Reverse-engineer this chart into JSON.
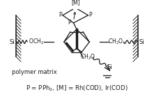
{
  "bg_color": "#ffffff",
  "line_color": "#1a1a1a",
  "fig_width": 2.21,
  "fig_height": 1.42,
  "dpi": 100,
  "label_polymer": "polymer matrix",
  "label_equation": "P = PPh$_2$, [M] = Rh(COD), Ir(COD)",
  "label_Si_left": "Si",
  "label_Si_right": "Si",
  "label_Si_bottom": "Si",
  "label_M": "[M]",
  "label_P_left": "P",
  "label_P_right": "P",
  "label_P_center": "P",
  "label_OCH2": "OCH$_2$",
  "label_CH2O_right": "CH$_2$O",
  "label_CH2O_bottom": "CH$_2$O"
}
